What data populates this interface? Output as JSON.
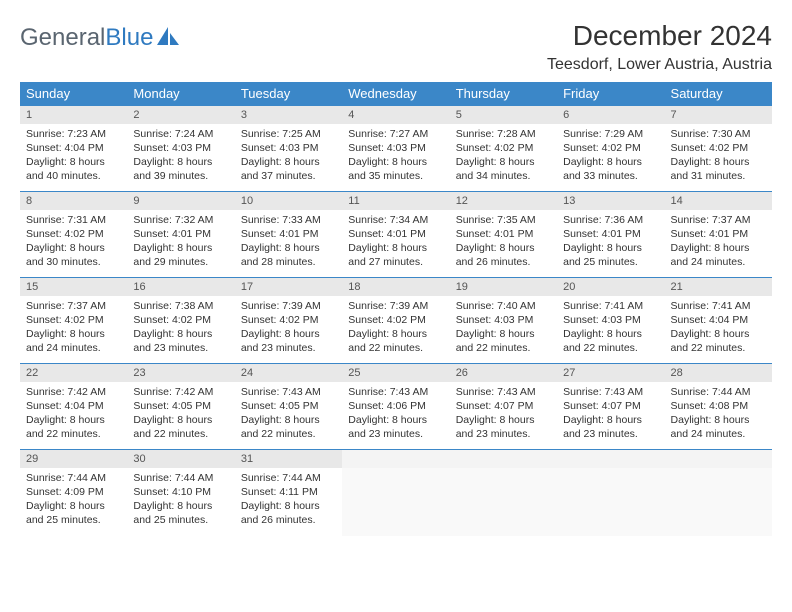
{
  "logo": {
    "text1": "General",
    "text2": "Blue"
  },
  "title": "December 2024",
  "location": "Teesdorf, Lower Austria, Austria",
  "colors": {
    "header_bg": "#3b87c8",
    "header_text": "#ffffff",
    "daynum_bg": "#e8e8e8",
    "row_border": "#3b87c8",
    "logo_gray": "#5a6570",
    "logo_blue": "#2f7ac0"
  },
  "day_headers": [
    "Sunday",
    "Monday",
    "Tuesday",
    "Wednesday",
    "Thursday",
    "Friday",
    "Saturday"
  ],
  "weeks": [
    {
      "nums": [
        "1",
        "2",
        "3",
        "4",
        "5",
        "6",
        "7"
      ],
      "cells": [
        {
          "sunrise": "Sunrise: 7:23 AM",
          "sunset": "Sunset: 4:04 PM",
          "day1": "Daylight: 8 hours",
          "day2": "and 40 minutes."
        },
        {
          "sunrise": "Sunrise: 7:24 AM",
          "sunset": "Sunset: 4:03 PM",
          "day1": "Daylight: 8 hours",
          "day2": "and 39 minutes."
        },
        {
          "sunrise": "Sunrise: 7:25 AM",
          "sunset": "Sunset: 4:03 PM",
          "day1": "Daylight: 8 hours",
          "day2": "and 37 minutes."
        },
        {
          "sunrise": "Sunrise: 7:27 AM",
          "sunset": "Sunset: 4:03 PM",
          "day1": "Daylight: 8 hours",
          "day2": "and 35 minutes."
        },
        {
          "sunrise": "Sunrise: 7:28 AM",
          "sunset": "Sunset: 4:02 PM",
          "day1": "Daylight: 8 hours",
          "day2": "and 34 minutes."
        },
        {
          "sunrise": "Sunrise: 7:29 AM",
          "sunset": "Sunset: 4:02 PM",
          "day1": "Daylight: 8 hours",
          "day2": "and 33 minutes."
        },
        {
          "sunrise": "Sunrise: 7:30 AM",
          "sunset": "Sunset: 4:02 PM",
          "day1": "Daylight: 8 hours",
          "day2": "and 31 minutes."
        }
      ]
    },
    {
      "nums": [
        "8",
        "9",
        "10",
        "11",
        "12",
        "13",
        "14"
      ],
      "cells": [
        {
          "sunrise": "Sunrise: 7:31 AM",
          "sunset": "Sunset: 4:02 PM",
          "day1": "Daylight: 8 hours",
          "day2": "and 30 minutes."
        },
        {
          "sunrise": "Sunrise: 7:32 AM",
          "sunset": "Sunset: 4:01 PM",
          "day1": "Daylight: 8 hours",
          "day2": "and 29 minutes."
        },
        {
          "sunrise": "Sunrise: 7:33 AM",
          "sunset": "Sunset: 4:01 PM",
          "day1": "Daylight: 8 hours",
          "day2": "and 28 minutes."
        },
        {
          "sunrise": "Sunrise: 7:34 AM",
          "sunset": "Sunset: 4:01 PM",
          "day1": "Daylight: 8 hours",
          "day2": "and 27 minutes."
        },
        {
          "sunrise": "Sunrise: 7:35 AM",
          "sunset": "Sunset: 4:01 PM",
          "day1": "Daylight: 8 hours",
          "day2": "and 26 minutes."
        },
        {
          "sunrise": "Sunrise: 7:36 AM",
          "sunset": "Sunset: 4:01 PM",
          "day1": "Daylight: 8 hours",
          "day2": "and 25 minutes."
        },
        {
          "sunrise": "Sunrise: 7:37 AM",
          "sunset": "Sunset: 4:01 PM",
          "day1": "Daylight: 8 hours",
          "day2": "and 24 minutes."
        }
      ]
    },
    {
      "nums": [
        "15",
        "16",
        "17",
        "18",
        "19",
        "20",
        "21"
      ],
      "cells": [
        {
          "sunrise": "Sunrise: 7:37 AM",
          "sunset": "Sunset: 4:02 PM",
          "day1": "Daylight: 8 hours",
          "day2": "and 24 minutes."
        },
        {
          "sunrise": "Sunrise: 7:38 AM",
          "sunset": "Sunset: 4:02 PM",
          "day1": "Daylight: 8 hours",
          "day2": "and 23 minutes."
        },
        {
          "sunrise": "Sunrise: 7:39 AM",
          "sunset": "Sunset: 4:02 PM",
          "day1": "Daylight: 8 hours",
          "day2": "and 23 minutes."
        },
        {
          "sunrise": "Sunrise: 7:39 AM",
          "sunset": "Sunset: 4:02 PM",
          "day1": "Daylight: 8 hours",
          "day2": "and 22 minutes."
        },
        {
          "sunrise": "Sunrise: 7:40 AM",
          "sunset": "Sunset: 4:03 PM",
          "day1": "Daylight: 8 hours",
          "day2": "and 22 minutes."
        },
        {
          "sunrise": "Sunrise: 7:41 AM",
          "sunset": "Sunset: 4:03 PM",
          "day1": "Daylight: 8 hours",
          "day2": "and 22 minutes."
        },
        {
          "sunrise": "Sunrise: 7:41 AM",
          "sunset": "Sunset: 4:04 PM",
          "day1": "Daylight: 8 hours",
          "day2": "and 22 minutes."
        }
      ]
    },
    {
      "nums": [
        "22",
        "23",
        "24",
        "25",
        "26",
        "27",
        "28"
      ],
      "cells": [
        {
          "sunrise": "Sunrise: 7:42 AM",
          "sunset": "Sunset: 4:04 PM",
          "day1": "Daylight: 8 hours",
          "day2": "and 22 minutes."
        },
        {
          "sunrise": "Sunrise: 7:42 AM",
          "sunset": "Sunset: 4:05 PM",
          "day1": "Daylight: 8 hours",
          "day2": "and 22 minutes."
        },
        {
          "sunrise": "Sunrise: 7:43 AM",
          "sunset": "Sunset: 4:05 PM",
          "day1": "Daylight: 8 hours",
          "day2": "and 22 minutes."
        },
        {
          "sunrise": "Sunrise: 7:43 AM",
          "sunset": "Sunset: 4:06 PM",
          "day1": "Daylight: 8 hours",
          "day2": "and 23 minutes."
        },
        {
          "sunrise": "Sunrise: 7:43 AM",
          "sunset": "Sunset: 4:07 PM",
          "day1": "Daylight: 8 hours",
          "day2": "and 23 minutes."
        },
        {
          "sunrise": "Sunrise: 7:43 AM",
          "sunset": "Sunset: 4:07 PM",
          "day1": "Daylight: 8 hours",
          "day2": "and 23 minutes."
        },
        {
          "sunrise": "Sunrise: 7:44 AM",
          "sunset": "Sunset: 4:08 PM",
          "day1": "Daylight: 8 hours",
          "day2": "and 24 minutes."
        }
      ]
    },
    {
      "nums": [
        "29",
        "30",
        "31",
        "",
        "",
        "",
        ""
      ],
      "cells": [
        {
          "sunrise": "Sunrise: 7:44 AM",
          "sunset": "Sunset: 4:09 PM",
          "day1": "Daylight: 8 hours",
          "day2": "and 25 minutes."
        },
        {
          "sunrise": "Sunrise: 7:44 AM",
          "sunset": "Sunset: 4:10 PM",
          "day1": "Daylight: 8 hours",
          "day2": "and 25 minutes."
        },
        {
          "sunrise": "Sunrise: 7:44 AM",
          "sunset": "Sunset: 4:11 PM",
          "day1": "Daylight: 8 hours",
          "day2": "and 26 minutes."
        },
        null,
        null,
        null,
        null
      ]
    }
  ]
}
